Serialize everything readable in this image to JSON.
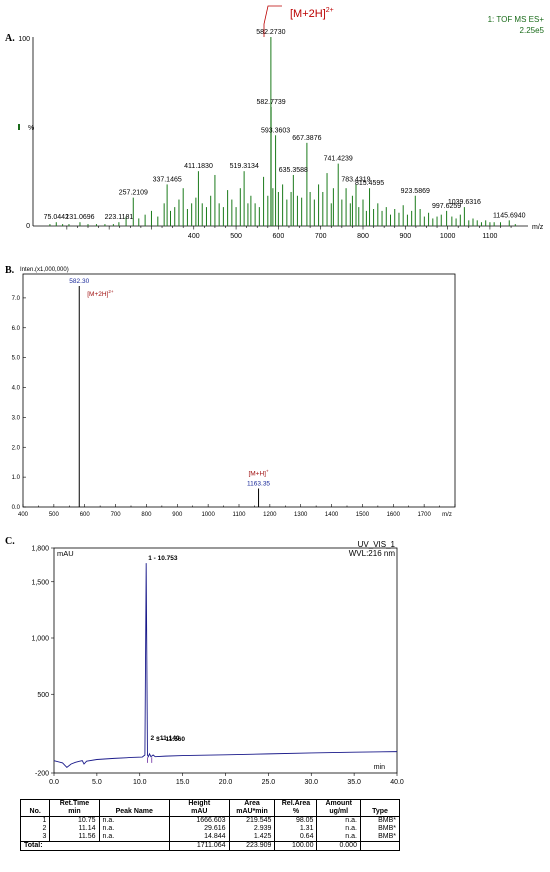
{
  "panels": {
    "a_label": "A.",
    "b_label": "B.",
    "c_label": "C."
  },
  "chart_data": [
    {
      "type": "line",
      "panel": "A",
      "header_right_1": "1: TOF MS ES+",
      "header_right_2": "2.25e5",
      "ylabel": "%",
      "xlabel": "m/z",
      "annotation": "[M+2H]2+",
      "y_ticks": [
        "100",
        "0"
      ],
      "ylim": [
        0,
        100
      ],
      "xlim": [
        20,
        1190
      ],
      "x_ticks": [
        400,
        500,
        600,
        700,
        800,
        900,
        1000,
        1100
      ],
      "peak_labels": [
        {
          "mz": 75.0442,
          "text": "75.0442",
          "y": 2
        },
        {
          "mz": 131.0696,
          "text": "131.0696",
          "y": 2
        },
        {
          "mz": 223.1181,
          "text": "223.1181",
          "y": 2
        },
        {
          "mz": 257.2109,
          "text": "257.2109",
          "y": 15
        },
        {
          "mz": 337.1465,
          "text": "337.1465",
          "y": 22
        },
        {
          "mz": 411.183,
          "text": "411.1830",
          "y": 29
        },
        {
          "mz": 519.3134,
          "text": "519.3134",
          "y": 29
        },
        {
          "mz": 582.273,
          "text": "582.2730",
          "y": 100
        },
        {
          "mz": 582.7739,
          "text": "582.7739",
          "y": 63
        },
        {
          "mz": 593.3603,
          "text": "593.3603",
          "y": 48
        },
        {
          "mz": 667.3876,
          "text": "667.3876",
          "y": 44
        },
        {
          "mz": 635.3588,
          "text": "635.3588",
          "y": 27
        },
        {
          "mz": 741.4239,
          "text": "741.4239",
          "y": 33
        },
        {
          "mz": 783.4319,
          "text": "783.4319",
          "y": 22
        },
        {
          "mz": 815.4595,
          "text": "815.4595",
          "y": 20
        },
        {
          "mz": 923.5869,
          "text": "923.5869",
          "y": 16
        },
        {
          "mz": 997.6259,
          "text": "997.6259",
          "y": 8
        },
        {
          "mz": 1039.6316,
          "text": "1039.6316",
          "y": 10
        },
        {
          "mz": 1145.694,
          "text": "1145.6940",
          "y": 3
        }
      ],
      "peaks": [
        [
          60,
          1
        ],
        [
          75,
          2
        ],
        [
          90,
          1
        ],
        [
          105,
          1
        ],
        [
          131,
          2
        ],
        [
          150,
          1
        ],
        [
          170,
          1
        ],
        [
          190,
          1
        ],
        [
          210,
          1
        ],
        [
          223,
          2
        ],
        [
          240,
          5
        ],
        [
          257,
          15
        ],
        [
          270,
          4
        ],
        [
          285,
          6
        ],
        [
          300,
          8
        ],
        [
          315,
          5
        ],
        [
          330,
          12
        ],
        [
          337,
          22
        ],
        [
          345,
          8
        ],
        [
          355,
          10
        ],
        [
          365,
          14
        ],
        [
          375,
          20
        ],
        [
          385,
          9
        ],
        [
          395,
          12
        ],
        [
          405,
          15
        ],
        [
          411,
          29
        ],
        [
          420,
          12
        ],
        [
          430,
          10
        ],
        [
          440,
          16
        ],
        [
          450,
          27
        ],
        [
          460,
          12
        ],
        [
          470,
          10
        ],
        [
          480,
          19
        ],
        [
          490,
          14
        ],
        [
          500,
          10
        ],
        [
          510,
          20
        ],
        [
          519,
          29
        ],
        [
          528,
          12
        ],
        [
          535,
          16
        ],
        [
          545,
          12
        ],
        [
          555,
          10
        ],
        [
          565,
          26
        ],
        [
          575,
          16
        ],
        [
          582.27,
          100
        ],
        [
          582.77,
          63
        ],
        [
          587,
          20
        ],
        [
          593.36,
          48
        ],
        [
          600,
          18
        ],
        [
          610,
          22
        ],
        [
          620,
          14
        ],
        [
          630,
          18
        ],
        [
          635.36,
          27
        ],
        [
          645,
          16
        ],
        [
          655,
          15
        ],
        [
          667.39,
          44
        ],
        [
          675,
          18
        ],
        [
          685,
          14
        ],
        [
          695,
          22
        ],
        [
          705,
          18
        ],
        [
          715,
          28
        ],
        [
          725,
          12
        ],
        [
          730,
          20
        ],
        [
          741.42,
          33
        ],
        [
          750,
          14
        ],
        [
          760,
          20
        ],
        [
          770,
          12
        ],
        [
          775,
          16
        ],
        [
          783.43,
          22
        ],
        [
          790,
          10
        ],
        [
          800,
          14
        ],
        [
          808,
          8
        ],
        [
          815.46,
          20
        ],
        [
          825,
          9
        ],
        [
          835,
          12
        ],
        [
          845,
          8
        ],
        [
          855,
          10
        ],
        [
          865,
          6
        ],
        [
          875,
          9
        ],
        [
          885,
          7
        ],
        [
          895,
          11
        ],
        [
          905,
          6
        ],
        [
          915,
          8
        ],
        [
          923.59,
          16
        ],
        [
          935,
          9
        ],
        [
          945,
          5
        ],
        [
          955,
          7
        ],
        [
          965,
          4
        ],
        [
          975,
          5
        ],
        [
          985,
          6
        ],
        [
          997.63,
          8
        ],
        [
          1010,
          5
        ],
        [
          1020,
          4
        ],
        [
          1030,
          6
        ],
        [
          1039.63,
          10
        ],
        [
          1050,
          3
        ],
        [
          1060,
          4
        ],
        [
          1070,
          3
        ],
        [
          1080,
          2
        ],
        [
          1090,
          3
        ],
        [
          1100,
          2
        ],
        [
          1110,
          2
        ],
        [
          1125,
          2
        ],
        [
          1145.69,
          3
        ],
        [
          1160,
          1
        ]
      ]
    },
    {
      "type": "bar",
      "panel": "B",
      "y_axis_title": "Inten.(x1,000,000)",
      "xlabel": "m/z",
      "ylim": [
        0,
        7.8
      ],
      "xlim": [
        400,
        1800
      ],
      "y_ticks": [
        "0.0",
        "1.0",
        "2.0",
        "3.0",
        "4.0",
        "5.0",
        "6.0",
        "7.0"
      ],
      "x_ticks": [
        "400",
        "500",
        "600",
        "700",
        "800",
        "900",
        "1000",
        "1100",
        "1200",
        "1300",
        "1400",
        "1500",
        "1600",
        "1700"
      ],
      "peaks": [
        {
          "mz": 582.3,
          "intensity": 7.4,
          "label": "582.30",
          "annotation": "[M+2H]2+"
        },
        {
          "mz": 1163.35,
          "intensity": 0.62,
          "label": "1163.35",
          "annotation": "[M+H]+"
        }
      ]
    },
    {
      "type": "line",
      "panel": "C",
      "ylabel": "mAU",
      "xlabel": "min",
      "header_right_1": "UV_VIS_1",
      "header_right_2": "WVL:216 nm",
      "ylim": [
        -200,
        1800
      ],
      "xlim": [
        0,
        40
      ],
      "y_ticks": [
        "1,800",
        "1,500",
        "1,000",
        "500",
        "-200"
      ],
      "x_ticks": [
        "0.0",
        "5.0",
        "10.0",
        "15.0",
        "20.0",
        "25.0",
        "30.0",
        "35.0",
        "40.0"
      ],
      "peak_labels": [
        {
          "text": "1 - 10.753",
          "t": 10.753,
          "y": 1666.603
        },
        {
          "text": "2 - 11.140",
          "t": 11.14,
          "y": 29.6
        },
        {
          "text": "3 - 11.560",
          "t": 11.56,
          "y": 14.8
        }
      ],
      "trace": [
        [
          0,
          -90
        ],
        [
          1,
          -110
        ],
        [
          1.5,
          -150
        ],
        [
          2,
          -120
        ],
        [
          2.5,
          -105
        ],
        [
          3,
          -95
        ],
        [
          3.3,
          -90
        ],
        [
          3.5,
          -120
        ],
        [
          3.8,
          -95
        ],
        [
          5,
          -80
        ],
        [
          7,
          -70
        ],
        [
          9,
          -62
        ],
        [
          10.3,
          -58
        ],
        [
          10.6,
          -40
        ],
        [
          10.75,
          1666
        ],
        [
          10.9,
          -40
        ],
        [
          11.0,
          -55
        ],
        [
          11.14,
          -30
        ],
        [
          11.3,
          -55
        ],
        [
          11.56,
          -40
        ],
        [
          11.8,
          -55
        ],
        [
          13,
          -50
        ],
        [
          15,
          -45
        ],
        [
          20,
          -38
        ],
        [
          25,
          -30
        ],
        [
          30,
          -22
        ],
        [
          35,
          -15
        ],
        [
          40,
          -10
        ]
      ]
    }
  ],
  "table": {
    "headers": {
      "no": "No.",
      "ret": "Ret.Time",
      "ret_unit": "min",
      "peak": "Peak Name",
      "height": "Height",
      "height_unit": "mAU",
      "area": "Area",
      "area_unit": "mAU*min",
      "rel": "Rel.Area",
      "rel_unit": "%",
      "amount": "Amount",
      "amount_unit": "ug/ml",
      "type": "Type"
    },
    "rows": [
      {
        "no": "1",
        "ret": "10.75",
        "peak": "n.a.",
        "height": "1666.603",
        "area": "219.545",
        "rel": "98.05",
        "amount": "n.a.",
        "type": "BMB*"
      },
      {
        "no": "2",
        "ret": "11.14",
        "peak": "n.a.",
        "height": "29.616",
        "area": "2.939",
        "rel": "1.31",
        "amount": "n.a.",
        "type": "BMB*"
      },
      {
        "no": "3",
        "ret": "11.56",
        "peak": "n.a.",
        "height": "14.844",
        "area": "1.425",
        "rel": "0.64",
        "amount": "n.a.",
        "type": "BMB*"
      }
    ],
    "total": {
      "label": "Total:",
      "height": "1711.064",
      "area": "223.909",
      "rel": "100.00",
      "amount": "0.000"
    }
  }
}
